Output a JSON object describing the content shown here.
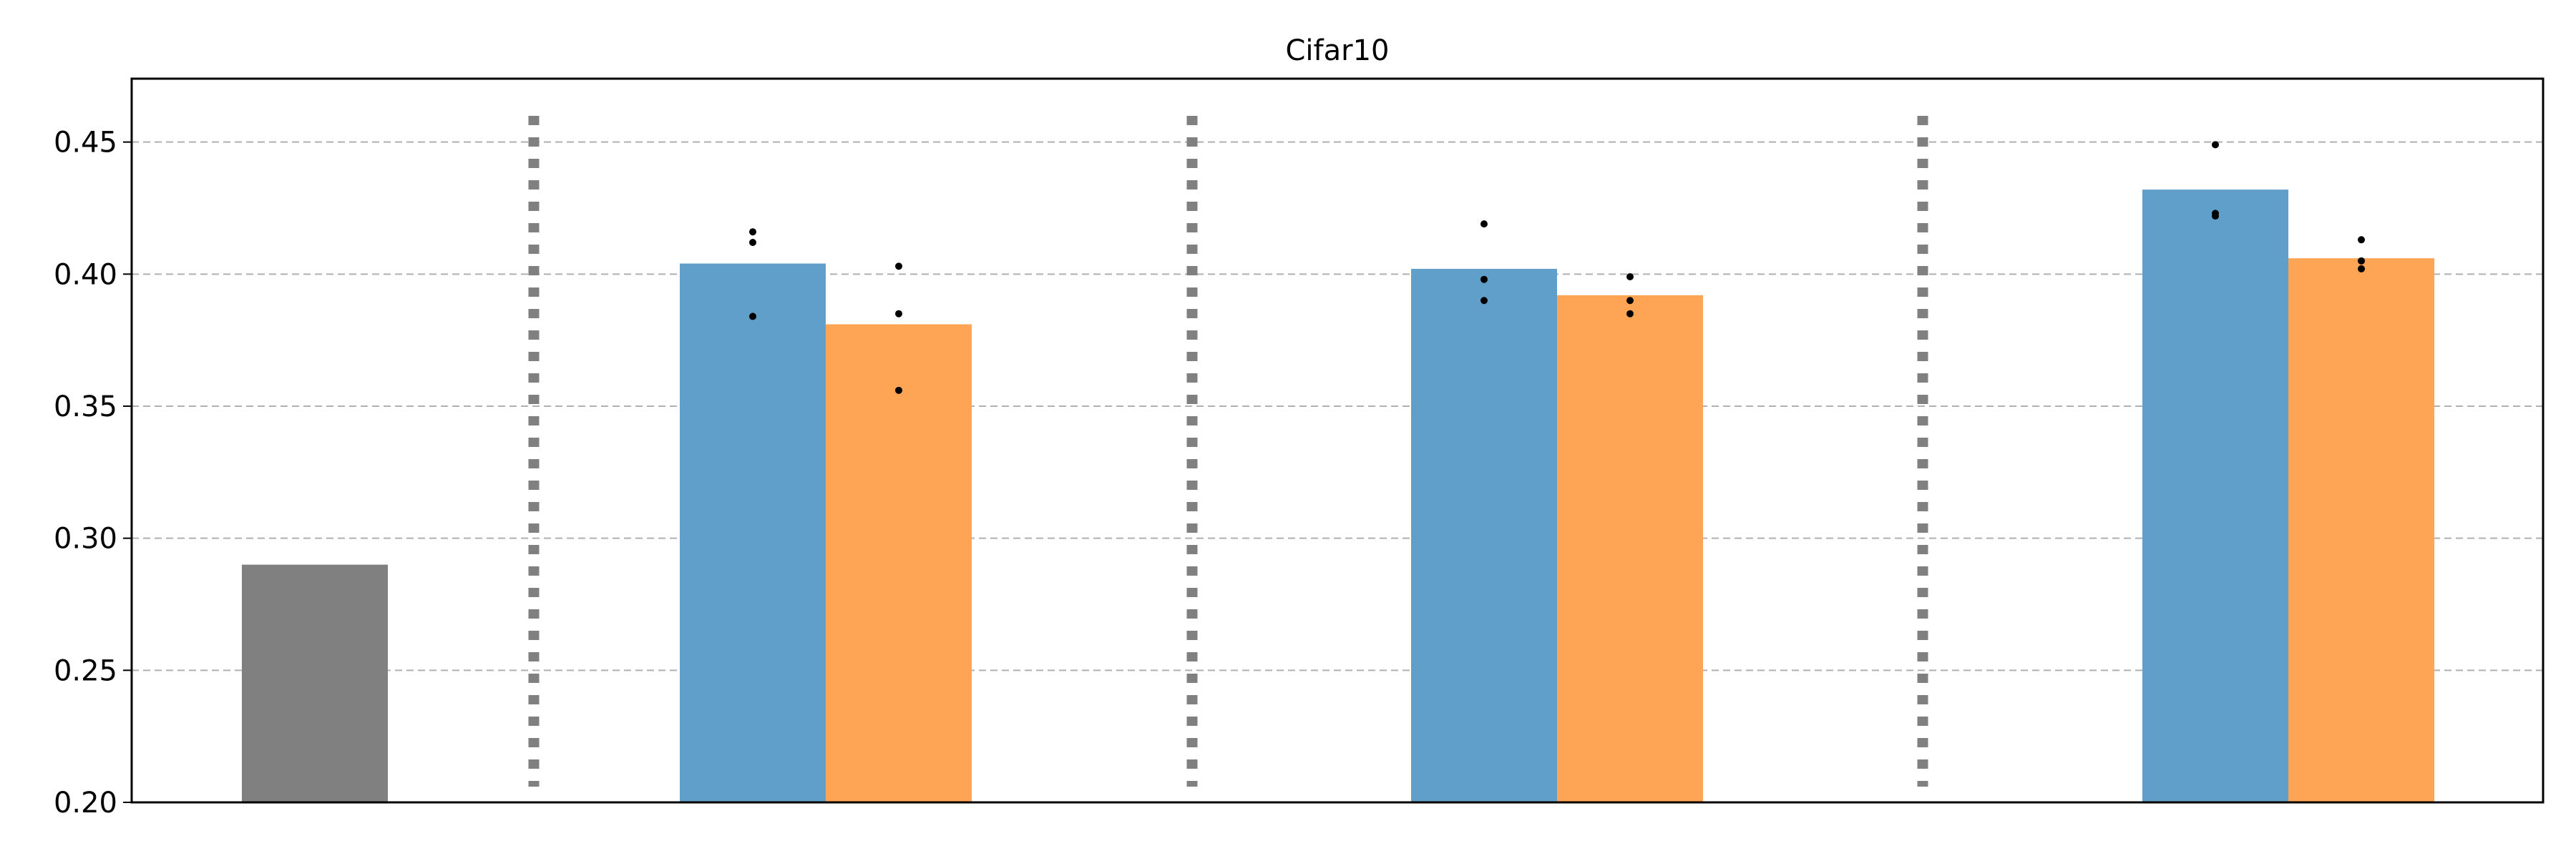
{
  "chart_data": {
    "type": "bar",
    "title": "Cifar10",
    "xlabel": "",
    "ylabel": "",
    "ylim": [
      0.2,
      0.474
    ],
    "yticks": [
      "0.20",
      "0.25",
      "0.30",
      "0.35",
      "0.40",
      "0.45"
    ],
    "grid": "y-dashed",
    "legend": "none",
    "colors": {
      "baseline": "#808080",
      "blue": "#5f9fca",
      "orange": "#fea555",
      "separator": "#808080",
      "grid": "#b0b0b0",
      "points": "#000000"
    },
    "baseline": {
      "value": 0.29
    },
    "groups": [
      {
        "blue": {
          "value": 0.404,
          "points": [
            0.416,
            0.412,
            0.384
          ]
        },
        "orange": {
          "value": 0.381,
          "points": [
            0.403,
            0.385,
            0.356
          ]
        }
      },
      {
        "blue": {
          "value": 0.402,
          "points": [
            0.419,
            0.398,
            0.39
          ]
        },
        "orange": {
          "value": 0.392,
          "points": [
            0.399,
            0.39,
            0.385
          ]
        }
      },
      {
        "blue": {
          "value": 0.432,
          "points": [
            0.449,
            0.423,
            0.422
          ]
        },
        "orange": {
          "value": 0.406,
          "points": [
            0.413,
            0.405,
            0.402
          ]
        }
      }
    ]
  }
}
